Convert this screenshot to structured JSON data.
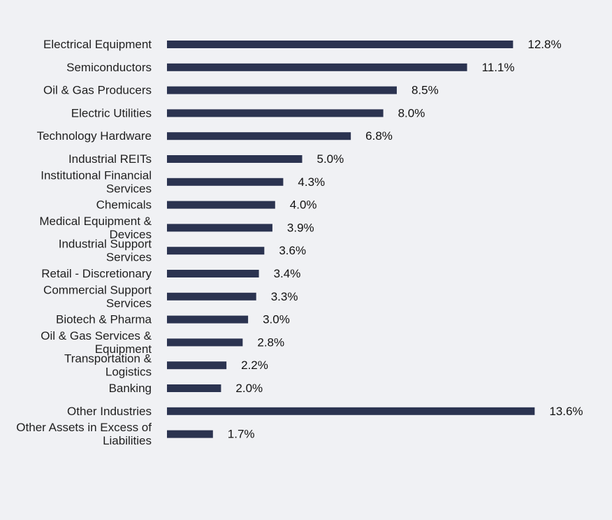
{
  "chart_data": {
    "type": "bar",
    "orientation": "horizontal",
    "title": "",
    "xlabel": "",
    "ylabel": "",
    "xlim": [
      0,
      15
    ],
    "grid": false,
    "legend": "none",
    "value_suffix": "%",
    "bar_color": "#2b3350",
    "categories": [
      [
        "Electrical Equipment"
      ],
      [
        "Semiconductors"
      ],
      [
        "Oil & Gas Producers"
      ],
      [
        "Electric Utilities"
      ],
      [
        "Technology Hardware"
      ],
      [
        "Industrial REITs"
      ],
      [
        "Institutional Financial",
        "Services"
      ],
      [
        "Chemicals"
      ],
      [
        "Medical Equipment &",
        "Devices"
      ],
      [
        "Industrial Support",
        "Services"
      ],
      [
        "Retail - Discretionary"
      ],
      [
        "Commercial Support",
        "Services"
      ],
      [
        "Biotech & Pharma"
      ],
      [
        "Oil & Gas Services &",
        "Equipment"
      ],
      [
        "Transportation &",
        "Logistics"
      ],
      [
        "Banking"
      ],
      [
        "Other Industries"
      ],
      [
        "Other Assets in Excess of",
        "Liabilities"
      ]
    ],
    "values": [
      12.8,
      11.1,
      8.5,
      8.0,
      6.8,
      5.0,
      4.3,
      4.0,
      3.9,
      3.6,
      3.4,
      3.3,
      3.0,
      2.8,
      2.2,
      2.0,
      13.6,
      1.7
    ],
    "value_labels": [
      "12.8%",
      "11.1%",
      "8.5%",
      "8.0%",
      "6.8%",
      "5.0%",
      "4.3%",
      "4.0%",
      "3.9%",
      "3.6%",
      "3.4%",
      "3.3%",
      "3.0%",
      "2.8%",
      "2.2%",
      "2.0%",
      "13.6%",
      "1.7%"
    ]
  }
}
